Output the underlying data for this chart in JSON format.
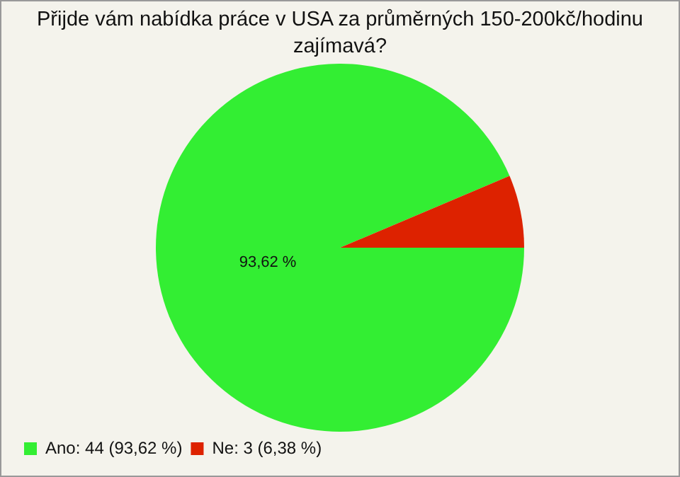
{
  "chart_data": {
    "type": "pie",
    "title": "Přijde vám nabídka práce v USA za průměrných 150-200kč/hodinu zajímavá?",
    "categories": [
      "Ano: 44 (93,62 %)",
      "Ne: 3 (6,38 %)"
    ],
    "values": [
      93.62,
      6.38
    ],
    "colors": [
      "#33ee33",
      "#dd2200"
    ],
    "value_labels": [
      "93,62 %",
      null
    ],
    "legend": "bottom left"
  }
}
